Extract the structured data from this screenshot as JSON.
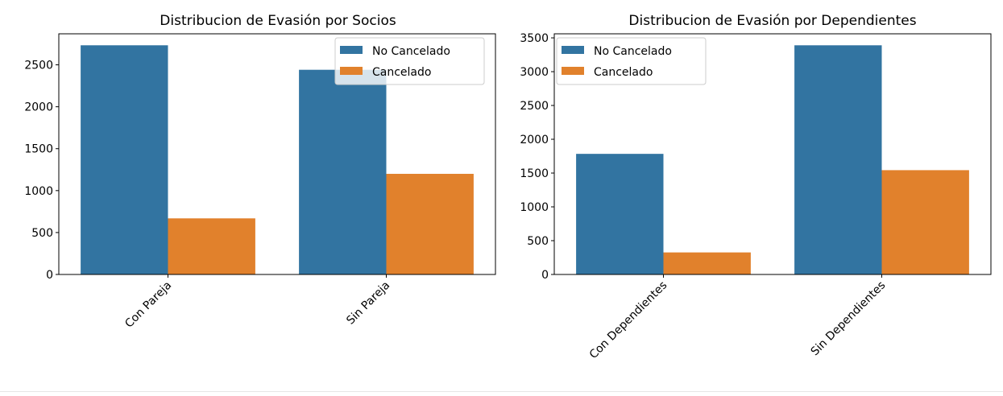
{
  "chart_data": [
    {
      "type": "bar",
      "title": "Distribucion de Evasión por Socios",
      "xlabel": "",
      "ylabel": "",
      "categories": [
        "Con Pareja",
        "Sin Pareja"
      ],
      "series": [
        {
          "name": "No Cancelado",
          "values": [
            2733,
            2441
          ],
          "color": "#3274a1"
        },
        {
          "name": "Cancelado",
          "values": [
            669,
            1200
          ],
          "color": "#e1812c"
        }
      ],
      "ylim": [
        0,
        2870
      ],
      "yticks": [
        0,
        500,
        1000,
        1500,
        2000,
        2500
      ],
      "grid": false,
      "legend": "top-right"
    },
    {
      "type": "bar",
      "title": "Distribucion de Evasión por Dependientes",
      "xlabel": "",
      "ylabel": "",
      "categories": [
        "Con Dependientes",
        "Sin Dependientes"
      ],
      "series": [
        {
          "name": "No Cancelado",
          "values": [
            1784,
            3390
          ],
          "color": "#3274a1"
        },
        {
          "name": "Cancelado",
          "values": [
            326,
            1543
          ],
          "color": "#e1812c"
        }
      ],
      "ylim": [
        0,
        3560
      ],
      "yticks": [
        0,
        500,
        1000,
        1500,
        2000,
        2500,
        3000,
        3500
      ],
      "grid": false,
      "legend": "top-left"
    }
  ]
}
